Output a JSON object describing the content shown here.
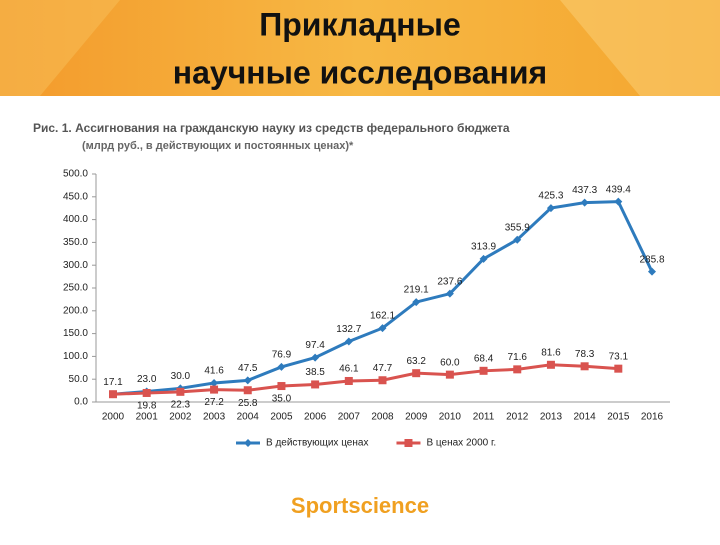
{
  "header": {
    "title_lines": [
      "Прикладные",
      "научные исследования"
    ]
  },
  "chart_data": {
    "type": "line",
    "title": "Рис. 1. Ассигнования на гражданскую науку из средств федерального бюджета",
    "subtitle": "(млрд руб., в действующих и постоянных ценах)*",
    "categories": [
      "2000",
      "2001",
      "2002",
      "2003",
      "2004",
      "2005",
      "2006",
      "2007",
      "2008",
      "2009",
      "2010",
      "2011",
      "2012",
      "2013",
      "2014",
      "2015",
      "2016"
    ],
    "series": [
      {
        "name": "В действующих ценах",
        "color": "#2e7bbd",
        "marker": "diamond",
        "values": [
          17.1,
          23.0,
          30.0,
          41.6,
          47.5,
          76.9,
          97.4,
          132.7,
          162.1,
          219.1,
          237.6,
          313.9,
          355.9,
          425.3,
          437.3,
          439.4,
          285.8
        ],
        "value_labels": [
          "17.1",
          "23.0",
          "30.0",
          "41.6",
          "47.5",
          "76.9",
          "97.4",
          "132.7",
          "162.1",
          "219.1",
          "237.6",
          "313.9",
          "355.9",
          "425.3",
          "437.3",
          "439.4",
          "285.8"
        ]
      },
      {
        "name": "В ценах 2000 г.",
        "color": "#d9534f",
        "marker": "square",
        "values": [
          17.1,
          19.8,
          22.3,
          27.2,
          25.8,
          35.0,
          38.5,
          46.1,
          47.7,
          63.2,
          60.0,
          68.4,
          71.6,
          81.6,
          78.3,
          73.1,
          null
        ],
        "value_labels": [
          null,
          "19.8",
          "22.3",
          "27.2",
          "25.8",
          "35.0",
          "38.5",
          "46.1",
          "47.7",
          "63.2",
          "60.0",
          "68.4",
          "71.6",
          "81.6",
          "78.3",
          "73.1",
          null
        ]
      }
    ],
    "ylim": [
      0,
      500
    ],
    "yticks": [
      {
        "value": 0,
        "label": "0.0"
      },
      {
        "value": 50,
        "label": "50.0"
      },
      {
        "value": 100,
        "label": "100.0"
      },
      {
        "value": 150,
        "label": "150.0"
      },
      {
        "value": 200,
        "label": "200.0"
      },
      {
        "value": 250,
        "label": "250.0"
      },
      {
        "value": 300,
        "label": "300.0"
      },
      {
        "value": 350,
        "label": "350.0"
      },
      {
        "value": 400,
        "label": "400.0"
      },
      {
        "value": 450,
        "label": "450.0"
      },
      {
        "value": 500,
        "label": "500.0"
      }
    ],
    "grid": false,
    "legend": "bottom"
  },
  "footer": {
    "brand": "Sportscience"
  }
}
